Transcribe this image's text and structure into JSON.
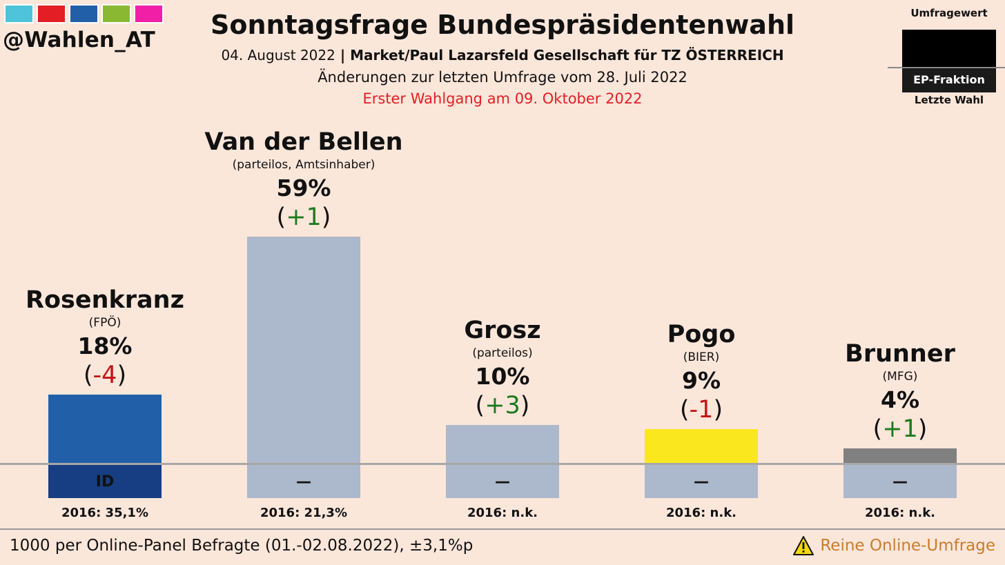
{
  "header": {
    "logo_text": "@Wahlen_AT",
    "logo_colors": [
      "#4fc3d9",
      "#e31e24",
      "#2160a8",
      "#8ab833",
      "#f01fa6"
    ],
    "title": "Sonntagsfrage Bundespräsidentenwahl",
    "date": "04. August 2022",
    "separator": " | ",
    "institute": "Market/Paul Lazarsfeld Gesellschaft für TZ ÖSTERREICH",
    "change_note": "Änderungen zur letzten Umfrage vom 28. Juli 2022",
    "election_note": "Erster Wahlgang am 09. Oktober 2022"
  },
  "legend": {
    "top_label": "Umfragewert",
    "middle_label": "EP-Fraktion",
    "bottom_label": "Letzte Wahl"
  },
  "footer": {
    "sample": "1000 per Online-Panel Befragte (01.-02.08.2022), ±3,1%p",
    "warning": "Reine Online-Umfrage",
    "warning_icon": "warning-triangle-icon"
  },
  "chart_data": {
    "type": "bar",
    "title": "Sonntagsfrage Bundespräsidentenwahl",
    "ylabel": "",
    "xlabel": "",
    "unit": "%",
    "categories": [
      "Rosenkranz",
      "Van der Bellen",
      "Grosz",
      "Pogo",
      "Brunner"
    ],
    "series": [
      {
        "name": "Umfragewert",
        "values": [
          18,
          59,
          10,
          9,
          4
        ]
      }
    ],
    "candidates": [
      {
        "name": "Rosenkranz",
        "party": "(FPÖ)",
        "value": 18,
        "value_label": "18%",
        "change": "-4",
        "change_dir": "neg",
        "color": "#2160a8",
        "group": "ID",
        "group_color": "#173d82",
        "prev": "2016: 35,1%"
      },
      {
        "name": "Van der Bellen",
        "party": "(parteilos, Amtsinhaber)",
        "value": 59,
        "value_label": "59%",
        "change": "+1",
        "change_dir": "pos",
        "color": "#acb8cb",
        "group": "—",
        "group_color": "#acb8cb",
        "prev": "2016: 21,3%"
      },
      {
        "name": "Grosz",
        "party": "(parteilos)",
        "value": 10,
        "value_label": "10%",
        "change": "+3",
        "change_dir": "pos",
        "color": "#acb8cb",
        "group": "—",
        "group_color": "#acb8cb",
        "prev": "2016: n.k."
      },
      {
        "name": "Pogo",
        "party": "(BIER)",
        "value": 9,
        "value_label": "9%",
        "change": "-1",
        "change_dir": "neg",
        "color": "#fbe71e",
        "group": "—",
        "group_color": "#acb8cb",
        "prev": "2016: n.k."
      },
      {
        "name": "Brunner",
        "party": "(MFG)",
        "value": 4,
        "value_label": "4%",
        "change": "+1",
        "change_dir": "pos",
        "color": "#808080",
        "group": "—",
        "group_color": "#acb8cb",
        "prev": "2016: n.k."
      }
    ],
    "paren_open": "(",
    "paren_close": ")",
    "pos_color": "#1d7a1d",
    "neg_color": "#c41414"
  }
}
